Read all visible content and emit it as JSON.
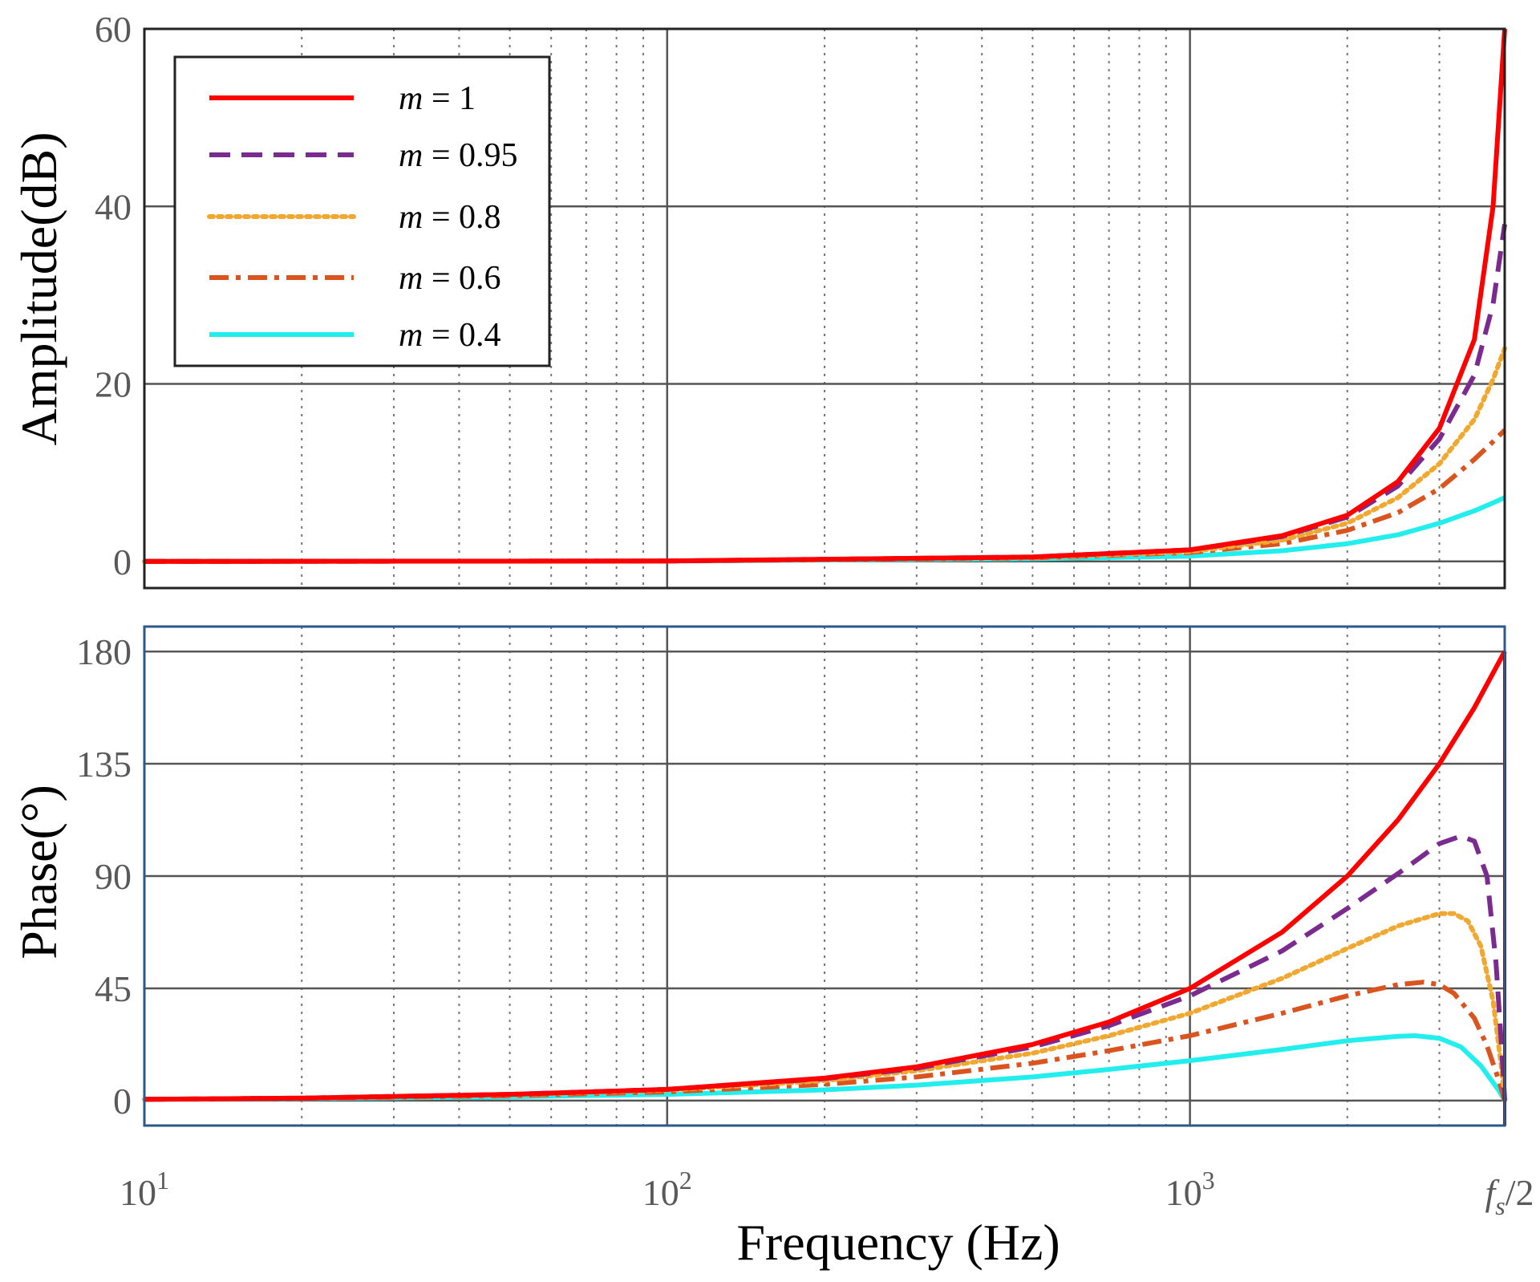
{
  "chart_data": [
    {
      "type": "line",
      "id": "amplitude",
      "ylabel": "Amplitude(dB)",
      "xscale": "log",
      "xlim_hz": [
        10,
        4000
      ],
      "ylim": [
        -3,
        60
      ],
      "yticks": [
        "0",
        "20",
        "40",
        "60"
      ],
      "ytick_values": [
        0,
        20,
        40,
        60
      ],
      "grid": true,
      "legend_position": "top-left",
      "series": [
        {
          "name": "m = 1",
          "m_label": "m",
          "value_label": " = 1",
          "color": "#ff0000",
          "dash": "solid",
          "x": [
            10,
            100,
            500,
            1000,
            1500,
            2000,
            2500,
            3000,
            3500,
            3800,
            4000
          ],
          "y": [
            0,
            0.05,
            0.5,
            1.3,
            2.9,
            5.2,
            9.0,
            15.0,
            25.0,
            40.0,
            60.0
          ]
        },
        {
          "name": "m = 0.95",
          "m_label": "m",
          "value_label": " = 0.95",
          "color": "#7b2b8f",
          "dash": "dashed",
          "x": [
            10,
            100,
            500,
            1000,
            1500,
            2000,
            2500,
            3000,
            3500,
            3800,
            4000
          ],
          "y": [
            0,
            0.05,
            0.5,
            1.3,
            2.8,
            5.0,
            8.5,
            13.8,
            21.0,
            29.0,
            38.0
          ]
        },
        {
          "name": "m = 0.8",
          "m_label": "m",
          "value_label": " = 0.8",
          "color": "#f0a830",
          "dash": "dotted",
          "x": [
            10,
            100,
            500,
            1000,
            1500,
            2000,
            2500,
            3000,
            3500,
            3800,
            4000
          ],
          "y": [
            0,
            0.05,
            0.45,
            1.1,
            2.4,
            4.3,
            7.2,
            11.0,
            16.0,
            20.5,
            24.0
          ]
        },
        {
          "name": "m = 0.6",
          "m_label": "m",
          "value_label": " = 0.6",
          "color": "#d9541e",
          "dash": "dashdot",
          "x": [
            10,
            100,
            500,
            1000,
            1500,
            2000,
            2500,
            3000,
            3500,
            3800,
            4000
          ],
          "y": [
            0,
            0.05,
            0.4,
            1.0,
            2.0,
            3.5,
            5.5,
            8.2,
            11.5,
            13.5,
            14.8
          ]
        },
        {
          "name": "m = 0.4",
          "m_label": "m",
          "value_label": " = 0.4",
          "color": "#22eeee",
          "dash": "solid",
          "x": [
            10,
            100,
            500,
            1000,
            1500,
            2000,
            2500,
            3000,
            3500,
            3800,
            4000
          ],
          "y": [
            0,
            0.05,
            0.3,
            0.6,
            1.2,
            2.0,
            3.0,
            4.3,
            5.7,
            6.6,
            7.2
          ]
        }
      ]
    },
    {
      "type": "line",
      "id": "phase",
      "ylabel": "Phase(°)",
      "xscale": "log",
      "xlim_hz": [
        10,
        4000
      ],
      "ylim": [
        -10,
        190
      ],
      "yticks": [
        "0",
        "45",
        "90",
        "135",
        "180"
      ],
      "ytick_values": [
        0,
        45,
        90,
        135,
        180
      ],
      "grid": true,
      "series": [
        {
          "name": "m = 1",
          "color": "#ff0000",
          "dash": "solid",
          "x": [
            10,
            20,
            50,
            100,
            200,
            300,
            500,
            700,
            1000,
            1500,
            2000,
            2500,
            3000,
            3500,
            4000
          ],
          "y": [
            0.5,
            1.0,
            2.5,
            4.5,
            9,
            13.5,
            22.5,
            31.5,
            45,
            67.5,
            90,
            112.5,
            135,
            157.5,
            180
          ]
        },
        {
          "name": "m = 0.95",
          "color": "#7b2b8f",
          "dash": "dashed",
          "x": [
            10,
            20,
            50,
            100,
            200,
            300,
            500,
            700,
            1000,
            1500,
            2000,
            2500,
            3000,
            3300,
            3500,
            3700,
            3850,
            3950,
            4000
          ],
          "y": [
            0.5,
            1.0,
            2.5,
            4.5,
            8.8,
            13,
            21.5,
            30,
            42,
            60,
            77,
            91,
            103,
            106,
            104,
            90,
            55,
            20,
            0
          ]
        },
        {
          "name": "m = 0.8",
          "color": "#f0a830",
          "dash": "dotted",
          "x": [
            10,
            20,
            50,
            100,
            200,
            300,
            500,
            700,
            1000,
            1500,
            2000,
            2500,
            3000,
            3200,
            3400,
            3600,
            3800,
            3950,
            4000
          ],
          "y": [
            0.5,
            1.0,
            2.3,
            4.2,
            8,
            12,
            19,
            26,
            35,
            49,
            61,
            70,
            75,
            75,
            72,
            62,
            40,
            12,
            0
          ]
        },
        {
          "name": "m = 0.6",
          "color": "#d9541e",
          "dash": "dashdot",
          "x": [
            10,
            20,
            50,
            100,
            200,
            300,
            500,
            700,
            1000,
            1500,
            2000,
            2500,
            2800,
            3000,
            3200,
            3500,
            3700,
            3900,
            4000
          ],
          "y": [
            0.5,
            0.9,
            2.0,
            3.5,
            6.5,
            9.5,
            15,
            20,
            26,
            35,
            42,
            46.5,
            47.5,
            46.5,
            43,
            33,
            22,
            8,
            0
          ]
        },
        {
          "name": "m = 0.4",
          "color": "#22eeee",
          "dash": "solid",
          "x": [
            10,
            20,
            50,
            100,
            200,
            300,
            500,
            700,
            1000,
            1500,
            2000,
            2500,
            2700,
            3000,
            3300,
            3600,
            3900,
            4000
          ],
          "y": [
            0.5,
            0.8,
            1.5,
            2.5,
            4.3,
            6.2,
            9.5,
            12.5,
            16,
            20.5,
            24,
            25.8,
            26,
            25,
            21.5,
            14,
            4,
            0
          ]
        }
      ]
    }
  ],
  "xaxis": {
    "label": "Frequency (Hz)",
    "tick_base": "10",
    "ticks": [
      {
        "hz": 10,
        "exp": "1"
      },
      {
        "hz": 100,
        "exp": "2"
      },
      {
        "hz": 1000,
        "exp": "3"
      }
    ],
    "end_label_f": "f",
    "end_label_sub": "s",
    "end_label_rest": "/2"
  }
}
